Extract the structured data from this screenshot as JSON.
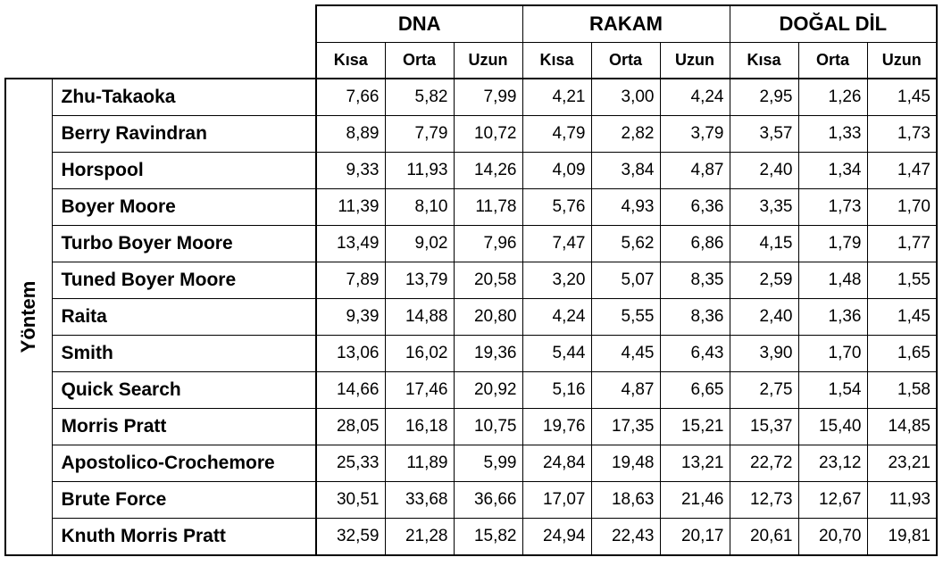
{
  "side_label": "Yöntem",
  "groups": [
    "DNA",
    "RAKAM",
    "DOĞAL DİL"
  ],
  "subheaders": [
    "Kısa",
    "Orta",
    "Uzun",
    "Kısa",
    "Orta",
    "Uzun",
    "Kısa",
    "Orta",
    "Uzun"
  ],
  "rows": [
    {
      "name": "Zhu-Takaoka",
      "values": [
        "7,66",
        "5,82",
        "7,99",
        "4,21",
        "3,00",
        "4,24",
        "2,95",
        "1,26",
        "1,45"
      ]
    },
    {
      "name": "Berry Ravindran",
      "values": [
        "8,89",
        "7,79",
        "10,72",
        "4,79",
        "2,82",
        "3,79",
        "3,57",
        "1,33",
        "1,73"
      ]
    },
    {
      "name": "Horspool",
      "values": [
        "9,33",
        "11,93",
        "14,26",
        "4,09",
        "3,84",
        "4,87",
        "2,40",
        "1,34",
        "1,47"
      ]
    },
    {
      "name": "Boyer Moore",
      "values": [
        "11,39",
        "8,10",
        "11,78",
        "5,76",
        "4,93",
        "6,36",
        "3,35",
        "1,73",
        "1,70"
      ]
    },
    {
      "name": "Turbo Boyer Moore",
      "values": [
        "13,49",
        "9,02",
        "7,96",
        "7,47",
        "5,62",
        "6,86",
        "4,15",
        "1,79",
        "1,77"
      ]
    },
    {
      "name": "Tuned Boyer Moore",
      "values": [
        "7,89",
        "13,79",
        "20,58",
        "3,20",
        "5,07",
        "8,35",
        "2,59",
        "1,48",
        "1,55"
      ]
    },
    {
      "name": "Raita",
      "values": [
        "9,39",
        "14,88",
        "20,80",
        "4,24",
        "5,55",
        "8,36",
        "2,40",
        "1,36",
        "1,45"
      ]
    },
    {
      "name": "Smith",
      "values": [
        "13,06",
        "16,02",
        "19,36",
        "5,44",
        "4,45",
        "6,43",
        "3,90",
        "1,70",
        "1,65"
      ]
    },
    {
      "name": "Quick Search",
      "values": [
        "14,66",
        "17,46",
        "20,92",
        "5,16",
        "4,87",
        "6,65",
        "2,75",
        "1,54",
        "1,58"
      ]
    },
    {
      "name": "Morris Pratt",
      "values": [
        "28,05",
        "16,18",
        "10,75",
        "19,76",
        "17,35",
        "15,21",
        "15,37",
        "15,40",
        "14,85"
      ]
    },
    {
      "name": "Apostolico-Crochemore",
      "values": [
        "25,33",
        "11,89",
        "5,99",
        "24,84",
        "19,48",
        "13,21",
        "22,72",
        "23,12",
        "23,21"
      ]
    },
    {
      "name": "Brute Force",
      "values": [
        "30,51",
        "33,68",
        "36,66",
        "17,07",
        "18,63",
        "21,46",
        "12,73",
        "12,67",
        "11,93"
      ]
    },
    {
      "name": "Knuth Morris Pratt",
      "values": [
        "32,59",
        "21,28",
        "15,82",
        "24,94",
        "22,43",
        "20,17",
        "20,61",
        "20,70",
        "19,81"
      ]
    }
  ]
}
